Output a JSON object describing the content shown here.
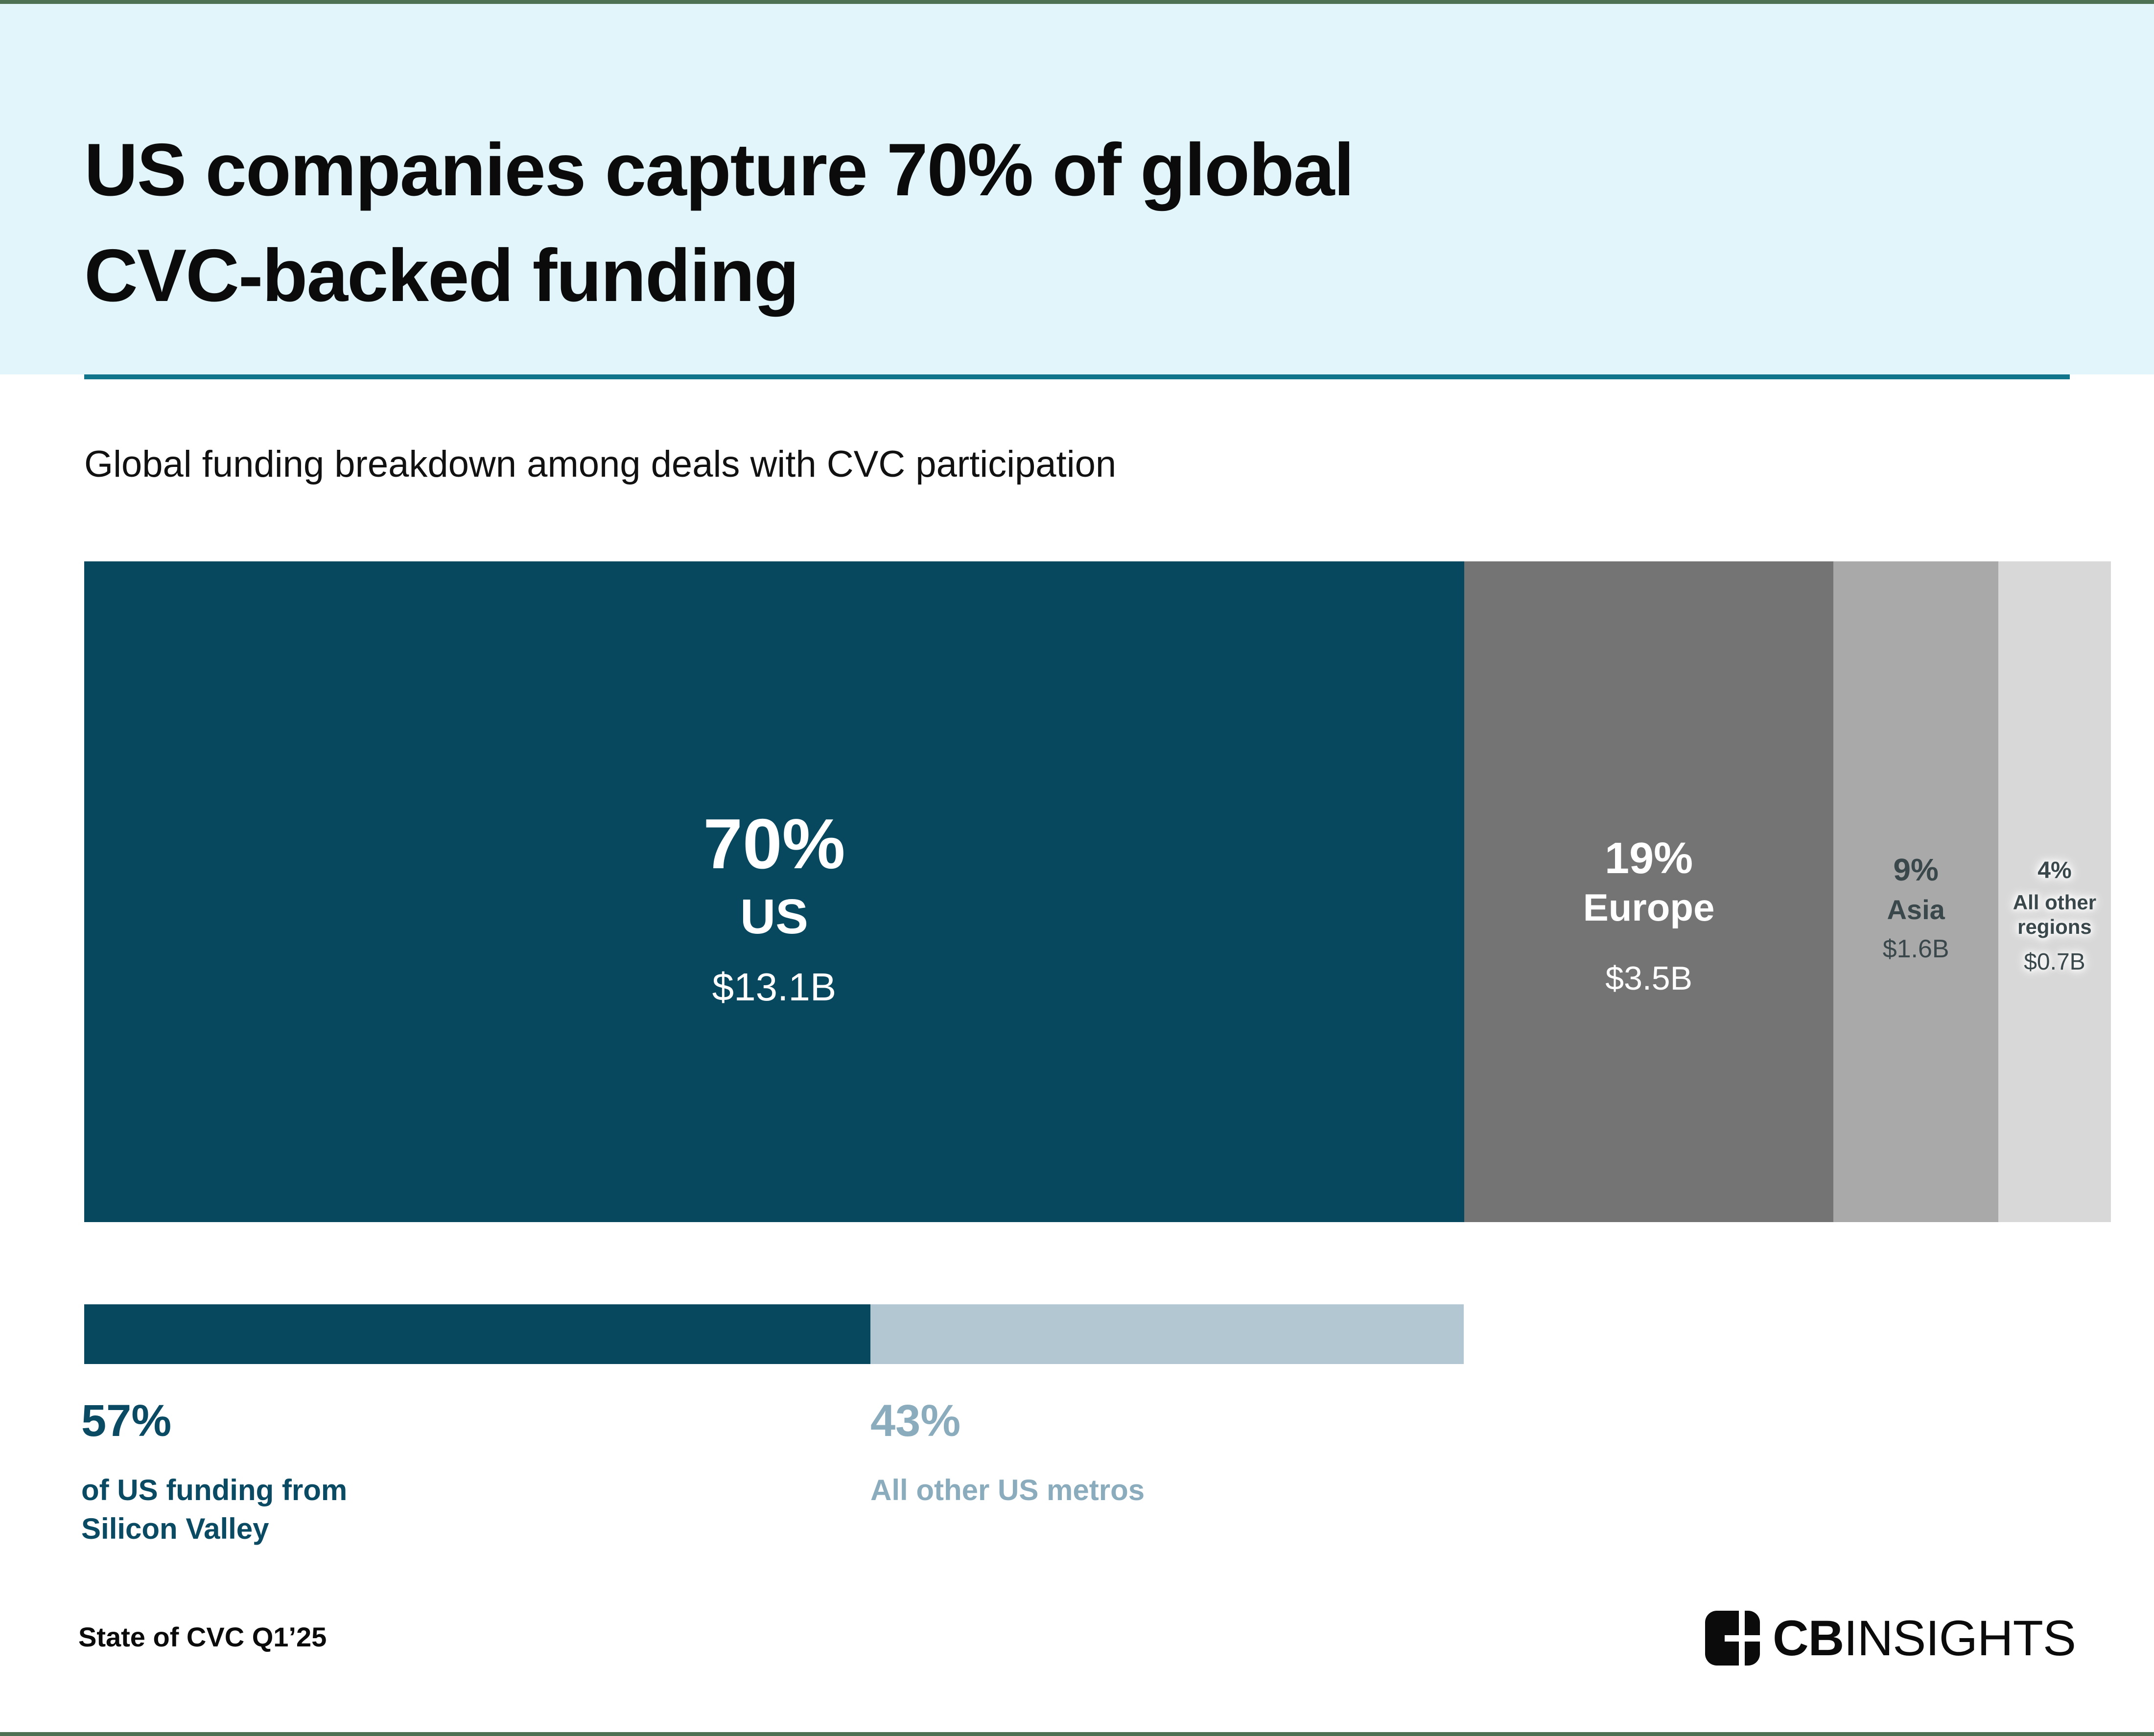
{
  "header": {
    "title": "US companies capture 70% of global\nCVC-backed funding",
    "subtitle": "Global funding breakdown among deals with CVC participation"
  },
  "colors": {
    "edge_strip": "#4D7152",
    "header_bg": "#E2F5FA",
    "divider": "#10758A",
    "us_teal": "#07485F",
    "europe_gray": "#747474",
    "asia_gray": "#A9A9A9",
    "other_gray": "#D8D8D8",
    "metro_light_blue": "#B2C7D1",
    "dark_label": "#3A484C",
    "sv_label": "#0A4A63",
    "metro_label": "#8BACBD"
  },
  "chart_data": [
    {
      "type": "stacked_bar",
      "title": "Global funding breakdown among deals with CVC participation",
      "orientation": "horizontal",
      "unit": "% of global CVC-backed funding",
      "segments": [
        {
          "label": "US",
          "pct": 70,
          "pct_label": "70%",
          "amount": "$13.1B",
          "color": "#07485F",
          "text_color": "#FFFFFF",
          "width_pct": 69.5
        },
        {
          "label": "Europe",
          "pct": 19,
          "pct_label": "19%",
          "amount": "$3.5B",
          "color": "#747474",
          "text_color": "#FFFFFF",
          "width_pct": 18.6
        },
        {
          "label": "Asia",
          "pct": 9,
          "pct_label": "9%",
          "amount": "$1.6B",
          "color": "#A9A9A9",
          "text_color": "#3A484C",
          "width_pct": 8.3
        },
        {
          "label": "All other regions",
          "pct": 4,
          "pct_label": "4%",
          "amount": "$0.7B",
          "color": "#D8D8D8",
          "text_color": "#3A484C",
          "width_pct": 3.6
        }
      ]
    },
    {
      "type": "stacked_bar",
      "title": "US funding split by metro",
      "orientation": "horizontal",
      "unit": "% of US CVC-backed funding",
      "segments": [
        {
          "label": "Silicon Valley",
          "pct": 57,
          "pct_label": "57%",
          "caption": "of US funding from\nSilicon Valley",
          "color": "#07485F",
          "label_color": "#0A4A63",
          "width_pct": 57
        },
        {
          "label": "All other US metros",
          "pct": 43,
          "pct_label": "43%",
          "caption": "All other US metros",
          "color": "#B2C7D1",
          "label_color": "#8BACBD",
          "width_pct": 43
        }
      ]
    }
  ],
  "footer": {
    "note": "State of CVC Q1’25",
    "brand_bold": "CB",
    "brand_regular": "INSIGHTS"
  }
}
